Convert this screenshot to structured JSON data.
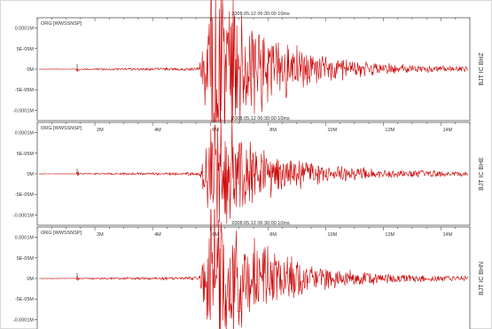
{
  "chart_data": [
    {
      "type": "line",
      "timestamp": "2008.05.12 06:30:00 10ms",
      "source_label": "ORG [WWSSNSP]",
      "station": "BJT IC BHZ",
      "y_ticks": [
        "0.0001M",
        "5E-05M",
        "0M",
        "-5E-05M",
        "-0.0001M"
      ],
      "x_ticks": [],
      "series": [
        {
          "color": "#cc0000"
        }
      ]
    },
    {
      "type": "line",
      "timestamp": "2008.05.12 06:30:00 10ms",
      "source_label": "ORG [WWSSNSP]",
      "station": "BJT IC BHE",
      "y_ticks": [
        "0.0001M",
        "5E-05M",
        "0M",
        "-5E-05M",
        "-0.0001M"
      ],
      "x_ticks": [
        "2M",
        "4M",
        "6M",
        "8M",
        "10M",
        "12M",
        "14M"
      ],
      "series": [
        {
          "color": "#cc0000"
        }
      ]
    },
    {
      "type": "line",
      "timestamp": "2008.05.12 06:30:00 10ms",
      "source_label": "ORG [WWSSNSP]",
      "station": "BJT IC BHN",
      "y_ticks": [
        "0.0001M",
        "5E-05M",
        "0M",
        "-5E-05M",
        "-0.0001M"
      ],
      "x_ticks": [
        "2M",
        "4M",
        "6M",
        "8M",
        "10M",
        "12M",
        "14M"
      ],
      "series": [
        {
          "color": "#cc0000"
        }
      ]
    }
  ],
  "colors": {
    "trace": "#cc0000",
    "axis": "#333333",
    "background": "#ffffff",
    "frame": "#d8d8d8"
  }
}
